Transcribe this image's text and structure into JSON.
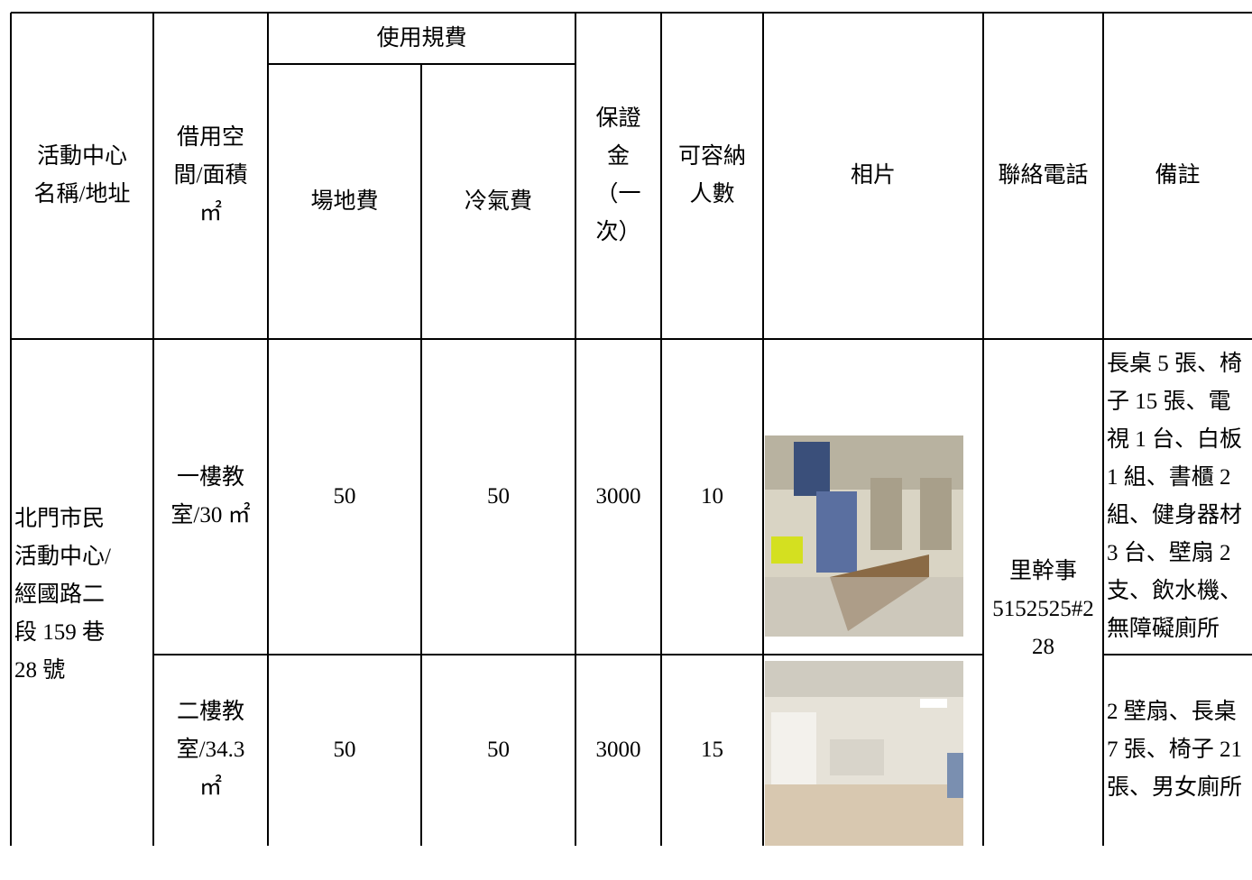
{
  "header": {
    "fee_group": "使用規費",
    "columns": [
      [
        "活動中心",
        "名稱/地址"
      ],
      [
        "借用空",
        "間/面積",
        "㎡"
      ],
      [
        "場地費"
      ],
      [
        "冷氣費"
      ],
      [
        "保證",
        "金",
        "（一",
        "次）"
      ],
      [
        "可容納",
        "人數"
      ],
      [
        "相片"
      ],
      [
        "聯絡電話"
      ],
      [
        "備註"
      ]
    ]
  },
  "table": {
    "center": [
      "北門市民",
      "活動中心/",
      "經國路二",
      "段 159 巷",
      "28 號"
    ],
    "contact": [
      "里幹事",
      "5152525#2",
      "28"
    ],
    "rows": [
      {
        "space": [
          "一樓教",
          "室/30 ㎡"
        ],
        "venue_fee": 50,
        "ac_fee": 50,
        "deposit": 3000,
        "capacity": 10,
        "remarks": [
          "長桌 5 張、椅",
          "子 15 張、電",
          "視 1 台、白板",
          "1 組、書櫃 2",
          "組、健身器材",
          "3 台、壁扇 2",
          "支、飲水機、",
          "無障礙廁所"
        ]
      },
      {
        "space": [
          "二樓教",
          "室/34.3",
          "㎡"
        ],
        "venue_fee": 50,
        "ac_fee": 50,
        "deposit": 3000,
        "capacity": 15,
        "remarks": [
          "2 壁扇、長桌",
          "7 張、椅子 21",
          "張、男女廁所"
        ]
      }
    ]
  }
}
